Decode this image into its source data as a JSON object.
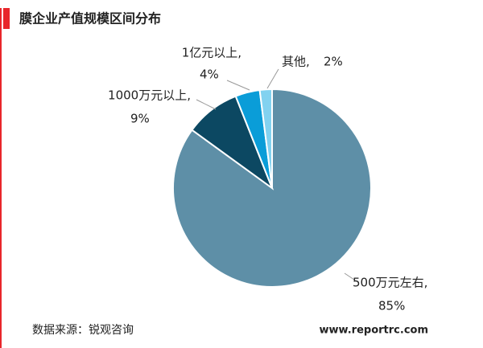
{
  "chart_data": {
    "type": "pie",
    "title": "膜企业产值规模区间分布",
    "categories": [
      "500万元左右,",
      "1000万元以上,",
      "1亿元以上,",
      "其他,"
    ],
    "values": [
      85,
      9,
      4,
      2
    ],
    "value_labels": [
      "85%",
      "9%",
      "4%",
      "2%"
    ],
    "colors": [
      "#5e8fa7",
      "#0c4862",
      "#0a9dd8",
      "#82d2f0"
    ],
    "source": "数据来源：锐观咨询",
    "website": "www.reportrc.com"
  }
}
